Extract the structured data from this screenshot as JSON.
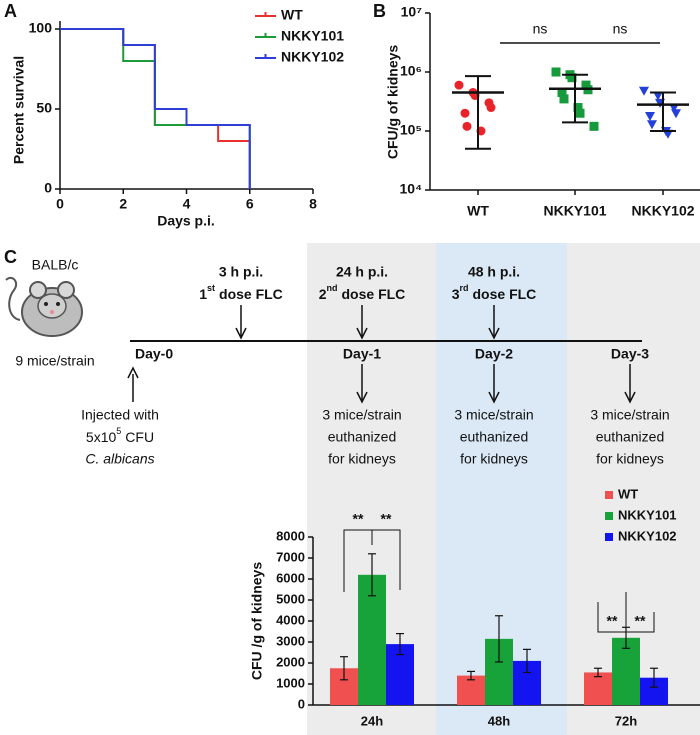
{
  "panel_labels": [
    "A",
    "B",
    "C"
  ],
  "chart_data": [
    {
      "type": "line",
      "step": true,
      "x": [
        0,
        2,
        3,
        4,
        5,
        6
      ],
      "series": [
        {
          "name": "WT",
          "color": "#e8312f",
          "values": [
            100,
            90,
            40,
            40,
            30,
            0
          ]
        },
        {
          "name": "NKKY101",
          "color": "#1f9a3a",
          "values": [
            100,
            80,
            40,
            40,
            40,
            0
          ]
        },
        {
          "name": "NKKY102",
          "color": "#2f3fd6",
          "values": [
            100,
            90,
            50,
            40,
            40,
            0
          ]
        }
      ],
      "xlim": [
        0,
        8
      ],
      "xticks": [
        0,
        2,
        4,
        6,
        8
      ],
      "ylim": [
        0,
        100
      ],
      "yticks": [
        0,
        50,
        100
      ],
      "x_label": "Days p.i.",
      "y_label": "Percent survival",
      "legend": "top-right"
    },
    {
      "type": "scatter",
      "log_y": true,
      "categories": [
        "WT",
        "NKKY101",
        "NKKY102"
      ],
      "groups": [
        {
          "color": "#e8232a",
          "values": [
            600000,
            450000,
            400000,
            300000,
            250000,
            200000,
            120000,
            100000
          ],
          "mean": 450000,
          "lower": 50000,
          "upper": 850000
        },
        {
          "color": "#159a3c",
          "values": [
            1000000,
            900000,
            800000,
            600000,
            500000,
            450000,
            350000,
            250000,
            200000,
            120000
          ],
          "mean": 520000,
          "lower": 140000,
          "upper": 900000
        },
        {
          "color": "#2440d8",
          "values": [
            480000,
            400000,
            300000,
            250000,
            200000,
            180000,
            130000,
            100000,
            90000
          ],
          "mean": 280000,
          "lower": 100000,
          "upper": 450000
        }
      ],
      "ylim": [
        10000,
        10000000
      ],
      "yticks": [
        {
          "value": 10000,
          "label": "10⁴"
        },
        {
          "value": 100000,
          "label": "10⁵"
        },
        {
          "value": 1000000,
          "label": "10⁶"
        },
        {
          "value": 10000000,
          "label": "10⁷"
        }
      ],
      "y_label": "CFU/g of kidneys",
      "annotations": [
        "ns",
        "ns"
      ]
    },
    {
      "type": "bar",
      "categories": [
        "24h",
        "48h",
        "72h"
      ],
      "series": [
        {
          "name": "WT",
          "color": "#f0504f",
          "values": [
            1750,
            1400,
            1550
          ],
          "errors": [
            550,
            200,
            200
          ]
        },
        {
          "name": "NKKY101",
          "color": "#17a23a",
          "values": [
            6200,
            3150,
            3200
          ],
          "errors": [
            1000,
            1100,
            500
          ]
        },
        {
          "name": "NKKY102",
          "color": "#1414f0",
          "values": [
            2900,
            2100,
            1300
          ],
          "errors": [
            500,
            550,
            450
          ]
        }
      ],
      "ylim": [
        0,
        8000
      ],
      "yticks": [
        0,
        1000,
        2000,
        3000,
        4000,
        5000,
        6000,
        7000,
        8000
      ],
      "y_label": "CFU /g of kidneys",
      "annotations": [
        "**",
        "**",
        "**",
        "**"
      ],
      "legend": "top-right"
    }
  ],
  "timeline": {
    "mouse": {
      "strain": "BALB/c",
      "count": "9 mice/strain"
    },
    "days": [
      "Day-0",
      "Day-1",
      "Day-2",
      "Day-3"
    ],
    "doses": [
      {
        "time": "3 h p.i.",
        "ordinal": "1",
        "suffix": "st",
        "text": "dose FLC"
      },
      {
        "time": "24 h p.i.",
        "ordinal": "2",
        "suffix": "nd",
        "text": "dose FLC"
      },
      {
        "time": "48 h p.i.",
        "ordinal": "3",
        "suffix": "rd",
        "text": "dose FLC"
      }
    ],
    "injection": {
      "line1": "Injected with",
      "base": "5x10",
      "exponent": "5",
      "unit": "CFU",
      "organism": "C. albicans"
    },
    "euthanasia": [
      [
        "3 mice/strain",
        "euthanized",
        "for kidneys"
      ],
      [
        "3 mice/strain",
        "euthanized",
        "for kidneys"
      ],
      [
        "3 mice/strain",
        "euthanized",
        "for kidneys"
      ]
    ]
  }
}
